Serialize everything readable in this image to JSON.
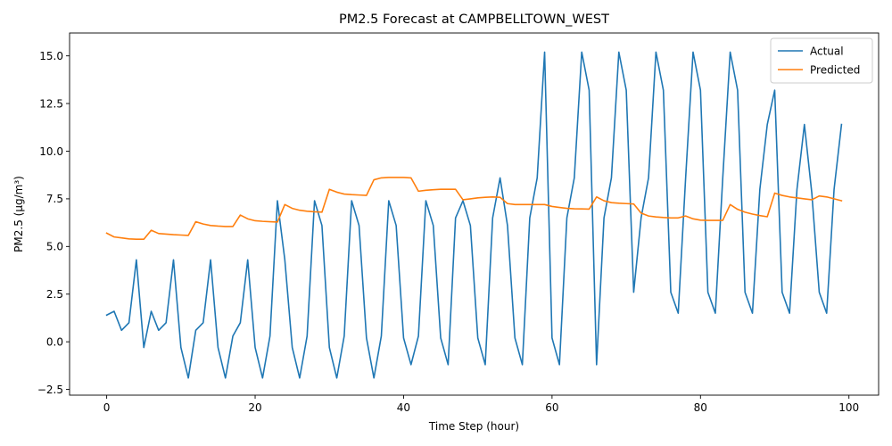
{
  "chart_data": {
    "type": "line",
    "title": "PM2.5 Forecast at CAMPBELLTOWN_WEST",
    "xlabel": "Time Step (hour)",
    "ylabel": "PM2.5 (µg/m³)",
    "xlim": [
      -5,
      104
    ],
    "ylim": [
      -2.8,
      16.2
    ],
    "xticks": [
      0,
      20,
      40,
      60,
      80,
      100
    ],
    "xtick_labels": [
      "0",
      "20",
      "40",
      "60",
      "80",
      "100"
    ],
    "yticks": [
      -2.5,
      0.0,
      2.5,
      5.0,
      7.5,
      10.0,
      12.5,
      15.0
    ],
    "ytick_labels": [
      "−2.5",
      "0.0",
      "2.5",
      "5.0",
      "7.5",
      "10.0",
      "12.5",
      "15.0"
    ],
    "grid": false,
    "legend_position": "top-right",
    "x": [
      0,
      1,
      2,
      3,
      4,
      5,
      6,
      7,
      8,
      9,
      10,
      11,
      12,
      13,
      14,
      15,
      16,
      17,
      18,
      19,
      20,
      21,
      22,
      23,
      24,
      25,
      26,
      27,
      28,
      29,
      30,
      31,
      32,
      33,
      34,
      35,
      36,
      37,
      38,
      39,
      40,
      41,
      42,
      43,
      44,
      45,
      46,
      47,
      48,
      49,
      50,
      51,
      52,
      53,
      54,
      55,
      56,
      57,
      58,
      59,
      60,
      61,
      62,
      63,
      64,
      65,
      66,
      67,
      68,
      69,
      70,
      71,
      72,
      73,
      74,
      75,
      76,
      77,
      78,
      79,
      80,
      81,
      82,
      83,
      84,
      85,
      86,
      87,
      88,
      89,
      90,
      91,
      92,
      93,
      94,
      95,
      96,
      97,
      98,
      99
    ],
    "series": [
      {
        "name": "Actual",
        "color": "#1f77b4",
        "values": [
          1.4,
          1.6,
          0.6,
          1.0,
          4.3,
          -0.3,
          1.6,
          0.6,
          1.0,
          4.3,
          -0.3,
          -1.9,
          0.6,
          1.0,
          4.3,
          -0.3,
          -1.9,
          0.3,
          1.0,
          4.3,
          -0.3,
          -1.9,
          0.3,
          7.4,
          4.3,
          -0.3,
          -1.9,
          0.3,
          7.4,
          6.1,
          -0.3,
          -1.9,
          0.3,
          7.4,
          6.1,
          0.2,
          -1.9,
          0.3,
          7.4,
          6.1,
          0.2,
          -1.2,
          0.3,
          7.4,
          6.1,
          0.2,
          -1.2,
          6.5,
          7.4,
          6.1,
          0.2,
          -1.2,
          6.5,
          8.6,
          6.1,
          0.2,
          -1.2,
          6.5,
          8.6,
          15.2,
          0.2,
          -1.2,
          6.5,
          8.6,
          15.2,
          13.2,
          -1.2,
          6.5,
          8.6,
          15.2,
          13.2,
          2.6,
          6.5,
          8.6,
          15.2,
          13.2,
          2.6,
          1.5,
          8.6,
          15.2,
          13.2,
          2.6,
          1.5,
          8.6,
          15.2,
          13.2,
          2.6,
          1.5,
          8.0,
          11.4,
          13.2,
          2.6,
          1.5,
          8.0,
          11.4,
          7.8,
          2.6,
          1.5,
          8.0,
          11.4
        ]
      },
      {
        "name": "Predicted",
        "color": "#ff7f0e",
        "values": [
          5.7,
          5.5,
          5.45,
          5.4,
          5.38,
          5.38,
          5.85,
          5.68,
          5.65,
          5.62,
          5.6,
          5.58,
          6.3,
          6.18,
          6.1,
          6.07,
          6.05,
          6.05,
          6.65,
          6.45,
          6.35,
          6.32,
          6.3,
          6.28,
          7.2,
          7.0,
          6.9,
          6.85,
          6.82,
          6.8,
          8.0,
          7.85,
          7.75,
          7.72,
          7.7,
          7.68,
          8.5,
          8.6,
          8.62,
          8.62,
          8.62,
          8.6,
          7.9,
          7.95,
          7.98,
          8.0,
          8.0,
          8.0,
          7.45,
          7.5,
          7.55,
          7.58,
          7.6,
          7.58,
          7.25,
          7.2,
          7.2,
          7.2,
          7.2,
          7.2,
          7.1,
          7.05,
          7.0,
          6.98,
          6.97,
          6.96,
          7.6,
          7.4,
          7.3,
          7.27,
          7.25,
          7.23,
          6.75,
          6.6,
          6.55,
          6.52,
          6.5,
          6.5,
          6.6,
          6.45,
          6.38,
          6.37,
          6.37,
          6.37,
          7.2,
          6.95,
          6.8,
          6.7,
          6.62,
          6.56,
          7.8,
          7.68,
          7.6,
          7.55,
          7.5,
          7.45,
          7.65,
          7.6,
          7.5,
          7.4
        ]
      }
    ]
  }
}
